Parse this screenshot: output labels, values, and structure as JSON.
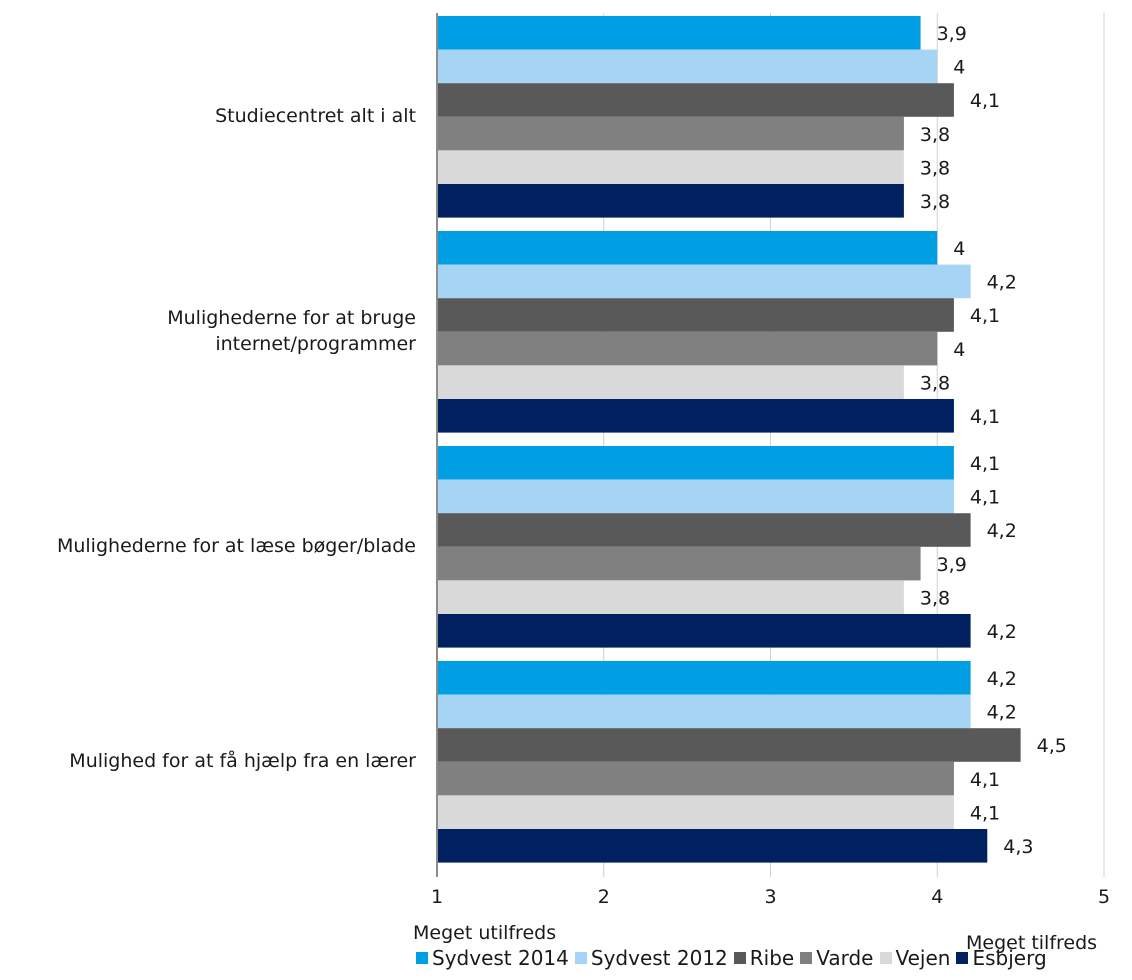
{
  "chart_data": {
    "type": "bar",
    "orientation": "horizontal",
    "categories": [
      "Studiecentret alt i alt",
      "Mulighederne for at bruge\ninternet/programmer",
      "Mulighederne for at læse bøger/blade",
      "Mulighed for at få hjælp fra en lærer"
    ],
    "series": [
      {
        "name": "Sydvest 2014",
        "color": "#009fe3",
        "values": [
          3.9,
          4.0,
          4.1,
          4.2
        ],
        "labels": [
          "3,9",
          "4",
          "4,1",
          "4,2"
        ]
      },
      {
        "name": "Sydvest 2012",
        "color": "#a6d4f4",
        "values": [
          4.0,
          4.2,
          4.1,
          4.2
        ],
        "labels": [
          "4",
          "4,2",
          "4,1",
          "4,2"
        ]
      },
      {
        "name": "Ribe",
        "color": "#595959",
        "values": [
          4.1,
          4.1,
          4.2,
          4.5
        ],
        "labels": [
          "4,1",
          "4,1",
          "4,2",
          "4,5"
        ]
      },
      {
        "name": "Varde",
        "color": "#808080",
        "values": [
          3.8,
          4.0,
          3.9,
          4.1
        ],
        "labels": [
          "3,8",
          "4",
          "3,9",
          "4,1"
        ]
      },
      {
        "name": "Vejen",
        "color": "#d9d9d9",
        "values": [
          3.8,
          3.8,
          3.8,
          4.1
        ],
        "labels": [
          "3,8",
          "3,8",
          "3,8",
          "4,1"
        ]
      },
      {
        "name": "Esbjerg",
        "color": "#002060",
        "values": [
          3.8,
          4.1,
          4.2,
          4.3
        ],
        "labels": [
          "3,8",
          "4,1",
          "4,2",
          "4,3"
        ]
      }
    ],
    "xlim": [
      1,
      5
    ],
    "ticks": [
      "1",
      "2",
      "3",
      "4",
      "5"
    ],
    "scale_low_label": "Meget utilfreds",
    "scale_high_label": "Meget tilfreds",
    "grid": "vertical gridlines",
    "legend": "bottom"
  }
}
